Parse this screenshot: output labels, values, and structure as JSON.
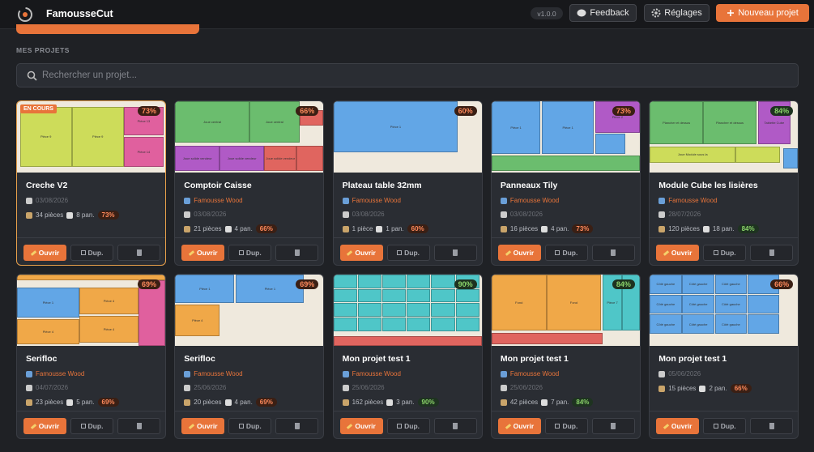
{
  "header": {
    "app_name": "FamousseCut",
    "version": "v1.0.0",
    "feedback": "Feedback",
    "settings": "Réglages",
    "new_project": "Nouveau projet"
  },
  "section_label": "MES PROJETS",
  "search_placeholder": "Rechercher un projet...",
  "buttons": {
    "open": "Ouvrir",
    "duplicate": "Dup."
  },
  "projects": [
    {
      "name": "Creche V2",
      "badge": "EN COURS",
      "date": "03/08/2026",
      "pieces": "34 pièces",
      "panels": "8 pan.",
      "usage": "73%",
      "preview": [
        "Pièce 9",
        "Pièce 9",
        "Pièce 13",
        "Pièce 14"
      ]
    },
    {
      "name": "Comptoir Caisse",
      "author": "Famousse Wood",
      "date": "03/08/2026",
      "pieces": "21 pièces",
      "panels": "4 pan.",
      "usage": "66%",
      "preview": [
        "Joue central",
        "Joue central",
        "Joue solide vendeur",
        "Joue solide vendeur",
        "Joue solide vendeur"
      ]
    },
    {
      "name": "Plateau table 32mm",
      "author": "Famousse Wood",
      "date": "03/08/2026",
      "pieces": "1 pièce",
      "panels": "1 pan.",
      "usage": "60%",
      "preview": [
        "Pièce 1"
      ]
    },
    {
      "name": "Panneaux Tily",
      "author": "Famousse Wood",
      "date": "03/08/2026",
      "pieces": "16 pièces",
      "panels": "4 pan.",
      "usage": "73%",
      "preview": [
        "Pièce 1",
        "Pièce 1",
        "Pièce 2"
      ]
    },
    {
      "name": "Module Cube les lisières",
      "author": "Famousse Wood",
      "date": "28/07/2026",
      "pieces": "120 pièces",
      "panels": "18 pan.",
      "usage": "84%",
      "preview": [
        "Plancher et dessus",
        "Plancher et dessus",
        "Tablette Cube",
        "Joue Module sous la"
      ]
    },
    {
      "name": "Serifloc",
      "author": "Famousse Wood",
      "date": "04/07/2026",
      "pieces": "23 pièces",
      "panels": "5 pan.",
      "usage": "69%",
      "preview": [
        "Pièce 1",
        "Pièce 4",
        "Pièce 4",
        "Pièce 4"
      ]
    },
    {
      "name": "Serifloc",
      "author": "Famousse Wood",
      "date": "25/06/2026",
      "pieces": "20 pièces",
      "panels": "4 pan.",
      "usage": "69%",
      "preview": [
        "Pièce 1",
        "Pièce 1",
        "Pièce 4"
      ]
    },
    {
      "name": "Mon projet test 1",
      "author": "Famousse Wood",
      "date": "25/06/2026",
      "pieces": "162 pièces",
      "panels": "3 pan.",
      "usage": "90%",
      "preview": []
    },
    {
      "name": "Mon projet test 1",
      "author": "Famousse Wood",
      "date": "25/06/2026",
      "pieces": "42 pièces",
      "panels": "7 pan.",
      "usage": "84%",
      "preview": [
        "Fond",
        "Fond",
        "Pièce 7"
      ]
    },
    {
      "name": "Mon projet test 1",
      "date": "05/06/2026",
      "pieces": "15 pièces",
      "panels": "2 pan.",
      "usage": "66%",
      "preview": [
        "Côté gauche"
      ]
    }
  ]
}
